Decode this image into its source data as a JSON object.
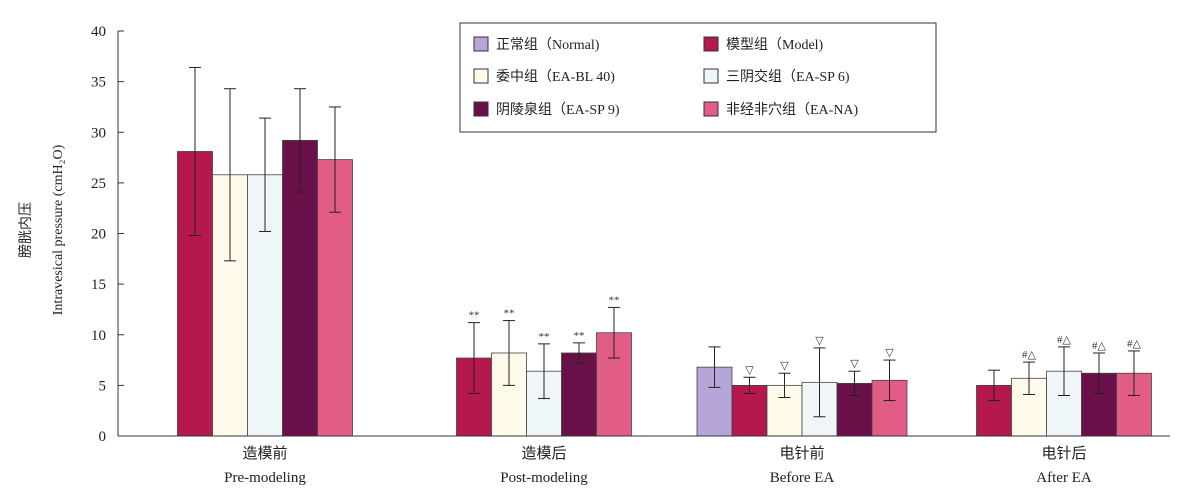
{
  "chart_data": {
    "type": "bar",
    "ylabel_cn": "膀胱内压",
    "ylabel": "Intravesical pressure (cmH₂O)",
    "ylim": [
      0,
      40
    ],
    "yticks": [
      "0",
      "5",
      "10",
      "15",
      "20",
      "25",
      "30",
      "35",
      "40"
    ],
    "categories": [
      {
        "cn": "造模前",
        "en": "Pre-modeling"
      },
      {
        "cn": "造模后",
        "en": "Post-modeling"
      },
      {
        "cn": "电针前",
        "en": "Before EA"
      },
      {
        "cn": "电针后",
        "en": "After EA"
      }
    ],
    "series": [
      {
        "name": "正常组（Normal)",
        "color": "#b6a6d8",
        "values": [
          null,
          null,
          6.8,
          null
        ],
        "errors": [
          null,
          null,
          2.0,
          null
        ],
        "annotations": [
          "",
          "",
          "",
          ""
        ]
      },
      {
        "name": "模型组（Model)",
        "color": "#b5174f",
        "values": [
          28.1,
          7.7,
          5.0,
          5.0
        ],
        "errors": [
          8.3,
          3.5,
          0.8,
          1.5
        ],
        "annotations": [
          "",
          "**",
          "▽",
          ""
        ]
      },
      {
        "name": "委中组（EA-BL 40)",
        "color": "#fffaea",
        "values": [
          25.8,
          8.2,
          5.0,
          5.7
        ],
        "errors": [
          8.5,
          3.2,
          1.2,
          1.6
        ],
        "annotations": [
          "",
          "**",
          "▽",
          "#△"
        ]
      },
      {
        "name": "三阴交组（EA-SP 6)",
        "color": "#eef6f8",
        "values": [
          25.8,
          6.4,
          5.3,
          6.4
        ],
        "errors": [
          5.6,
          2.7,
          3.4,
          2.4
        ],
        "annotations": [
          "",
          "**",
          "▽",
          "#△"
        ]
      },
      {
        "name": "阴陵泉组（EA-SP 9)",
        "color": "#6a1048",
        "values": [
          29.2,
          8.2,
          5.2,
          6.2
        ],
        "errors": [
          5.1,
          1.0,
          1.2,
          2.0
        ],
        "annotations": [
          "",
          "**",
          "▽",
          "#△"
        ]
      },
      {
        "name": "非经非穴组（EA-NA)",
        "color": "#e25d86",
        "values": [
          27.3,
          10.2,
          5.5,
          6.2
        ],
        "errors": [
          5.2,
          2.5,
          2.0,
          2.2
        ],
        "annotations": [
          "",
          "**",
          "▽",
          "#△"
        ]
      }
    ],
    "legend_position": "top-center"
  }
}
